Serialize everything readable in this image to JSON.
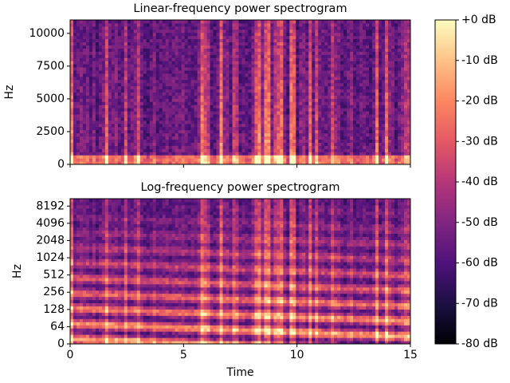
{
  "chart_data": [
    {
      "type": "spectrogram",
      "title": "Linear-frequency power spectrogram",
      "y_label": "Hz",
      "xlim": [
        0,
        15
      ],
      "xticks": [
        0,
        5,
        10,
        15
      ],
      "xtick_labels": false,
      "ylim": [
        0,
        11025
      ],
      "yticks": [
        0,
        2500,
        5000,
        7500,
        10000
      ],
      "yscale": "linear",
      "cmap": "magma"
    },
    {
      "type": "spectrogram",
      "title": "Log-frequency power spectrogram",
      "y_label": "Hz",
      "x_label": "Time",
      "xlim": [
        0,
        15
      ],
      "xticks": [
        0,
        5,
        10,
        15
      ],
      "xtick_labels": true,
      "ylim": [
        0,
        11025
      ],
      "yticks": [
        0,
        64,
        128,
        256,
        512,
        1024,
        2048,
        4096,
        8192
      ],
      "yscale": "log",
      "cmap": "magma"
    },
    {
      "type": "colorbar",
      "cmap": "magma",
      "ylim": [
        -80,
        0
      ],
      "yticks": [
        {
          "value": 0,
          "label": "+0 dB"
        },
        {
          "value": -10,
          "label": "-10 dB"
        },
        {
          "value": -20,
          "label": "-20 dB"
        },
        {
          "value": -30,
          "label": "-30 dB"
        },
        {
          "value": -40,
          "label": "-40 dB"
        },
        {
          "value": -50,
          "label": "-50 dB"
        },
        {
          "value": -60,
          "label": "-60 dB"
        },
        {
          "value": -70,
          "label": "-70 dB"
        },
        {
          "value": -80,
          "label": "-80 dB"
        }
      ]
    }
  ]
}
